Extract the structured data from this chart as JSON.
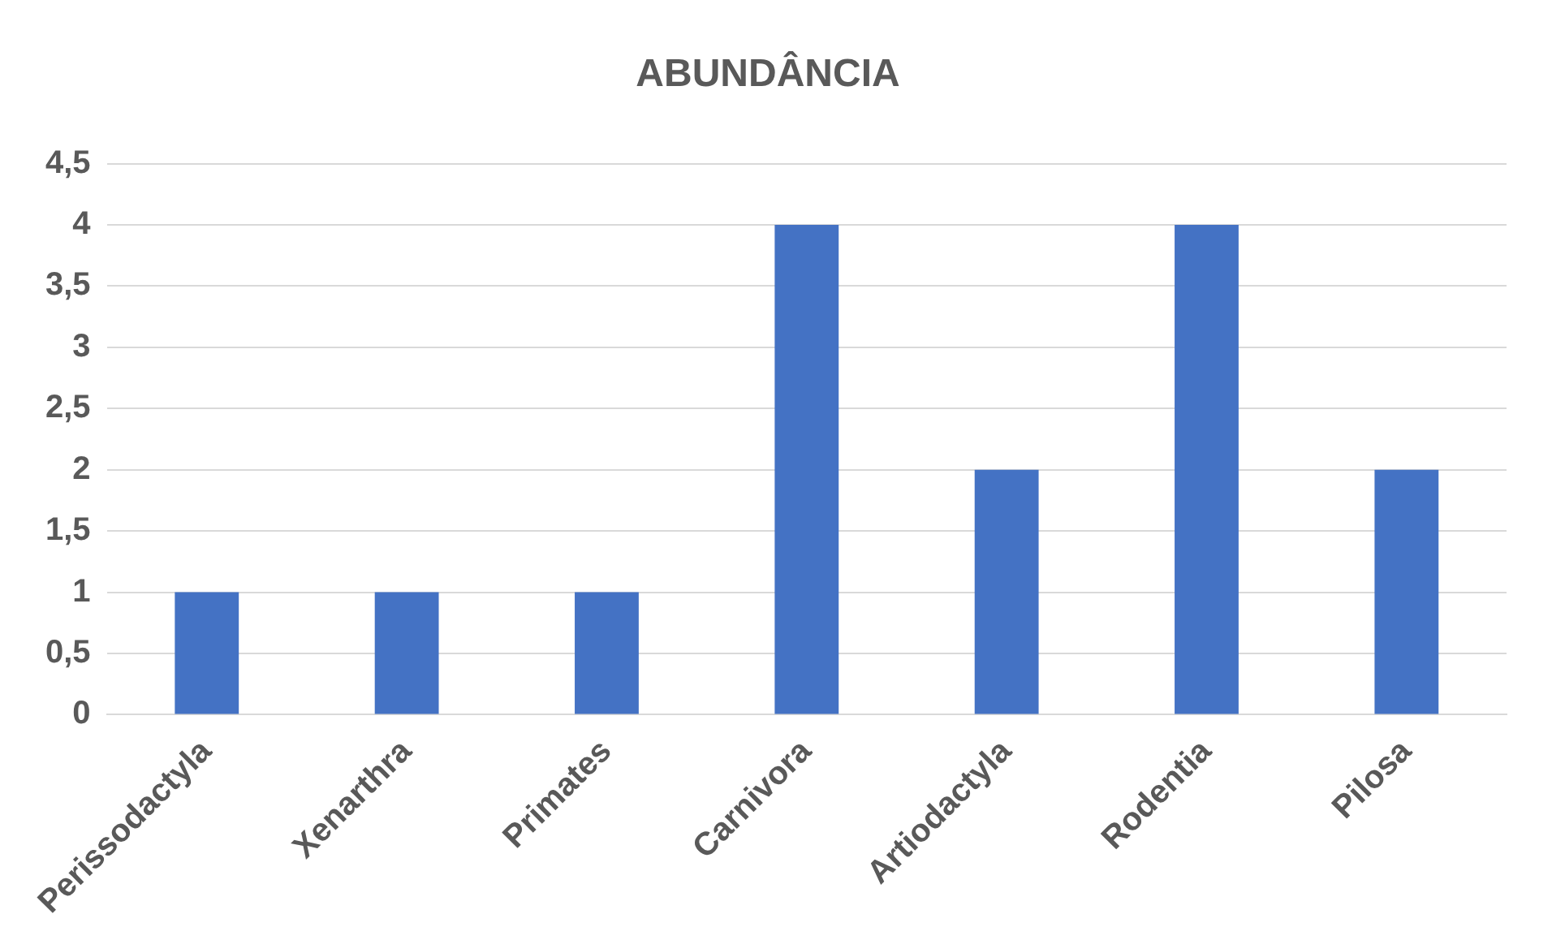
{
  "chart_data": {
    "type": "bar",
    "title": "ABUNDÂNCIA",
    "categories": [
      "Perissodactyla",
      "Xenarthra",
      "Primates",
      "Carnivora",
      "Artiodactyla",
      "Rodentia",
      "Pilosa"
    ],
    "values": [
      1,
      1,
      1,
      4,
      2,
      4,
      2
    ],
    "color": "#4472c4",
    "ylim": [
      0,
      4.5
    ],
    "yticks": [
      0,
      {
        "value": 0.5,
        "label": "0,5"
      },
      1,
      {
        "value": 1.5,
        "label": "1,5"
      },
      2,
      {
        "value": 2.5,
        "label": "2,5"
      },
      3,
      {
        "value": 3.5,
        "label": "3,5"
      },
      4,
      {
        "value": 4.5,
        "label": "4,5"
      }
    ],
    "grid": "y",
    "legend": false
  }
}
